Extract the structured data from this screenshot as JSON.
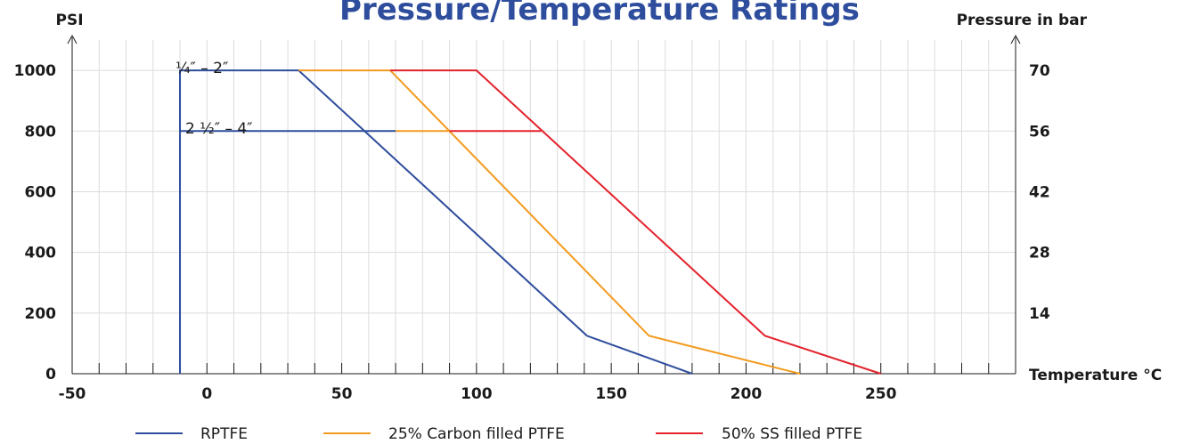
{
  "chart_data": {
    "type": "line",
    "title": "Pressure/Temperature Ratings",
    "xlabel": "Temperature °C",
    "ylabel_left": "PSI",
    "ylabel_right": "Pressure in bar",
    "xlim": [
      -50,
      300
    ],
    "ylim": [
      0,
      1100
    ],
    "x_ticks": [
      -50,
      0,
      50,
      100,
      150,
      200,
      250
    ],
    "x_tick_labels": [
      "-50",
      "0",
      "50",
      "100",
      "150",
      "200",
      "250"
    ],
    "x_minor_step": 10,
    "y_ticks": [
      0,
      200,
      400,
      600,
      800,
      1000
    ],
    "y_tick_labels": [
      "0",
      "200",
      "400",
      "600",
      "800",
      "1000"
    ],
    "y2_ticks": [
      200,
      400,
      600,
      800,
      1000
    ],
    "y2_tick_labels": [
      "14",
      "28",
      "42",
      "56",
      "70"
    ],
    "grid": true,
    "legend_position": "bottom",
    "annotations": [
      {
        "text": "¼″ – 2″",
        "x": -10,
        "y": 1000
      },
      {
        "text": "2 ½″ – 4″",
        "x": -10,
        "y": 800
      }
    ],
    "series": [
      {
        "name": "RPTFE",
        "color": "#2e4d9c",
        "points": [
          [
            -10,
            0
          ],
          [
            -10,
            1000
          ],
          [
            34,
            1000
          ],
          [
            141,
            125
          ],
          [
            180,
            0
          ]
        ],
        "extra_segments": [
          [
            [
              -10,
              800
            ],
            [
              70,
              800
            ]
          ]
        ]
      },
      {
        "name": "25% Carbon filled PTFE",
        "color": "#f39a1e",
        "points": [
          [
            34,
            1000
          ],
          [
            68,
            1000
          ],
          [
            164,
            125
          ],
          [
            220,
            0
          ]
        ],
        "extra_segments": [
          [
            [
              70,
              800
            ],
            [
              90,
              800
            ]
          ]
        ]
      },
      {
        "name": "50% SS filled PTFE",
        "color": "#e3222c",
        "points": [
          [
            68,
            1000
          ],
          [
            100,
            1000
          ],
          [
            207,
            125
          ],
          [
            250,
            0
          ]
        ],
        "extra_segments": [
          [
            [
              90,
              800
            ],
            [
              124,
              800
            ]
          ]
        ]
      }
    ]
  }
}
